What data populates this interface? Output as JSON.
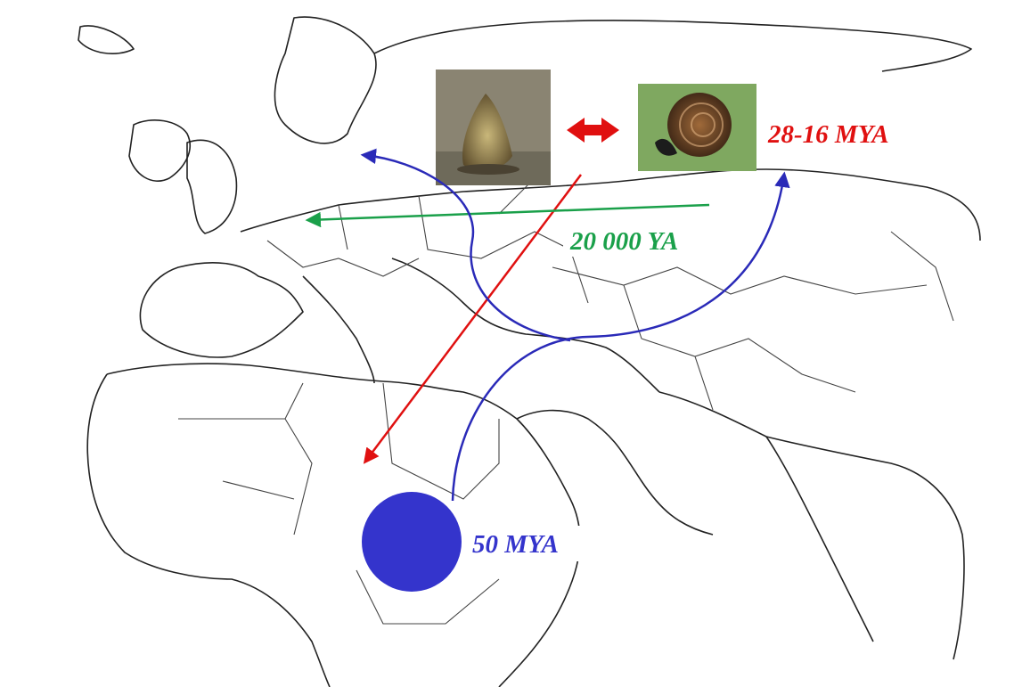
{
  "annotations": [
    {
      "text": "28-16 MYA"
    },
    {
      "text": "20 000 YA"
    },
    {
      "text": "50 MYA"
    }
  ]
}
